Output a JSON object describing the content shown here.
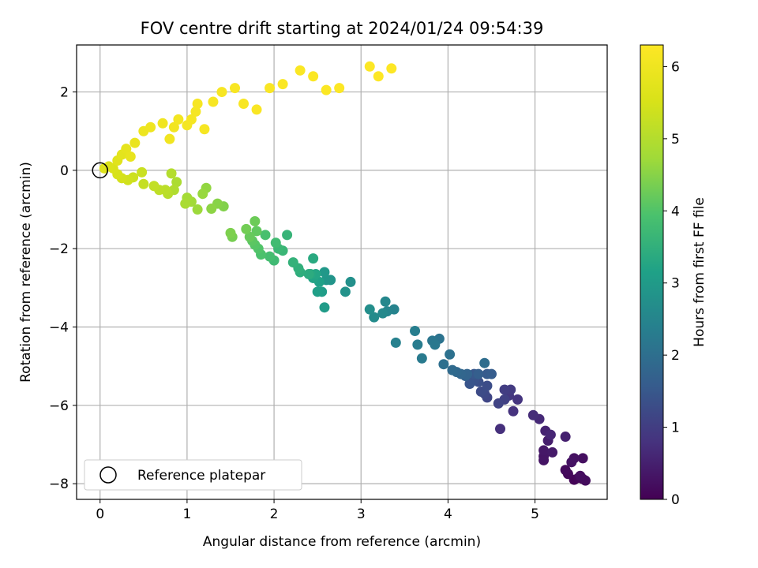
{
  "chart_data": {
    "type": "scatter",
    "title": "FOV centre drift starting at 2024/01/24 09:54:39",
    "xlabel": "Angular distance from reference (arcmin)",
    "ylabel": "Rotation from reference (arcmin)",
    "xlim": [
      -0.27,
      5.83
    ],
    "ylim": [
      -8.4,
      3.2
    ],
    "xticks": [
      0,
      1,
      2,
      3,
      4,
      5
    ],
    "yticks": [
      -8,
      -6,
      -4,
      -2,
      0,
      2
    ],
    "grid": true,
    "colormap": "viridis",
    "colorbar": {
      "label": "Hours from first FF file",
      "range": [
        0,
        6.3
      ],
      "ticks": [
        0,
        1,
        2,
        3,
        4,
        5,
        6
      ]
    },
    "legend": {
      "placement": "lower-left",
      "entries": [
        {
          "label": "Reference platepar",
          "marker": "open-circle",
          "x": 0,
          "y": 0
        }
      ]
    },
    "series": [
      {
        "points": [
          [
            5.45,
            -7.9,
            0.05
          ],
          [
            5.55,
            -7.88,
            0.08
          ],
          [
            5.5,
            -7.85,
            0.1
          ],
          [
            5.38,
            -7.75,
            0.12
          ],
          [
            5.35,
            -7.65,
            0.15
          ],
          [
            5.58,
            -7.92,
            0.17
          ],
          [
            5.52,
            -7.8,
            0.2
          ],
          [
            5.55,
            -7.35,
            0.22
          ],
          [
            5.45,
            -7.35,
            0.25
          ],
          [
            5.42,
            -7.45,
            0.28
          ],
          [
            5.1,
            -7.4,
            0.3
          ],
          [
            5.1,
            -7.3,
            0.32
          ],
          [
            5.1,
            -7.15,
            0.35
          ],
          [
            5.2,
            -7.2,
            0.4
          ],
          [
            5.15,
            -6.9,
            0.45
          ],
          [
            5.35,
            -6.8,
            0.5
          ],
          [
            5.12,
            -6.65,
            0.55
          ],
          [
            5.18,
            -6.75,
            0.6
          ],
          [
            5.05,
            -6.35,
            0.65
          ],
          [
            4.98,
            -6.25,
            0.7
          ],
          [
            4.6,
            -6.6,
            0.75
          ],
          [
            4.75,
            -6.15,
            0.8
          ],
          [
            4.8,
            -5.85,
            0.85
          ],
          [
            4.7,
            -5.75,
            0.9
          ],
          [
            4.72,
            -5.6,
            0.95
          ],
          [
            4.65,
            -5.6,
            1.0
          ],
          [
            4.65,
            -5.85,
            1.05
          ],
          [
            4.58,
            -5.95,
            1.1
          ],
          [
            4.45,
            -5.8,
            1.15
          ],
          [
            4.42,
            -5.7,
            1.2
          ],
          [
            4.38,
            -5.65,
            1.25
          ],
          [
            4.45,
            -5.5,
            1.3
          ],
          [
            4.35,
            -5.4,
            1.35
          ],
          [
            4.3,
            -5.35,
            1.4
          ],
          [
            4.25,
            -5.45,
            1.45
          ],
          [
            4.3,
            -5.2,
            1.5
          ],
          [
            4.45,
            -5.2,
            1.55
          ],
          [
            4.5,
            -5.2,
            1.6
          ],
          [
            4.35,
            -5.2,
            1.65
          ],
          [
            4.2,
            -5.25,
            1.7
          ],
          [
            4.22,
            -5.2,
            1.75
          ],
          [
            4.15,
            -5.2,
            1.8
          ],
          [
            4.1,
            -5.15,
            1.85
          ],
          [
            4.05,
            -5.1,
            1.9
          ],
          [
            4.42,
            -4.92,
            1.95
          ],
          [
            3.95,
            -4.95,
            2.0
          ],
          [
            4.02,
            -4.7,
            2.05
          ],
          [
            3.9,
            -4.3,
            2.1
          ],
          [
            3.82,
            -4.35,
            2.15
          ],
          [
            3.85,
            -4.45,
            2.2
          ],
          [
            3.7,
            -4.8,
            2.25
          ],
          [
            3.65,
            -4.45,
            2.3
          ],
          [
            3.62,
            -4.1,
            2.35
          ],
          [
            3.4,
            -4.4,
            2.4
          ],
          [
            3.38,
            -3.55,
            2.45
          ],
          [
            3.3,
            -3.6,
            2.5
          ],
          [
            3.28,
            -3.35,
            2.55
          ],
          [
            3.25,
            -3.65,
            2.6
          ],
          [
            3.15,
            -3.75,
            2.65
          ],
          [
            3.1,
            -3.55,
            2.7
          ],
          [
            2.88,
            -2.85,
            2.75
          ],
          [
            2.82,
            -3.1,
            2.8
          ],
          [
            2.65,
            -2.8,
            2.85
          ],
          [
            2.6,
            -2.8,
            2.9
          ],
          [
            2.58,
            -2.6,
            2.95
          ],
          [
            2.58,
            -3.5,
            3.0
          ],
          [
            2.55,
            -3.1,
            3.05
          ],
          [
            2.5,
            -3.1,
            3.1
          ],
          [
            2.52,
            -2.85,
            3.15
          ],
          [
            2.45,
            -2.75,
            3.2
          ],
          [
            2.48,
            -2.65,
            3.25
          ],
          [
            2.42,
            -2.65,
            3.3
          ],
          [
            2.45,
            -2.25,
            3.35
          ],
          [
            2.4,
            -2.65,
            3.4
          ],
          [
            2.3,
            -2.6,
            3.45
          ],
          [
            2.28,
            -2.5,
            3.5
          ],
          [
            2.22,
            -2.35,
            3.55
          ],
          [
            2.15,
            -1.65,
            3.6
          ],
          [
            2.1,
            -2.05,
            3.65
          ],
          [
            2.05,
            -2.0,
            3.7
          ],
          [
            2.0,
            -2.3,
            3.75
          ],
          [
            2.02,
            -1.85,
            3.8
          ],
          [
            1.95,
            -2.2,
            3.85
          ],
          [
            1.9,
            -1.65,
            3.9
          ],
          [
            1.85,
            -2.15,
            3.95
          ],
          [
            1.82,
            -2.0,
            4.0
          ],
          [
            1.78,
            -1.9,
            4.05
          ],
          [
            1.75,
            -1.8,
            4.1
          ],
          [
            1.8,
            -1.55,
            4.15
          ],
          [
            1.72,
            -1.7,
            4.2
          ],
          [
            1.78,
            -1.3,
            4.25
          ],
          [
            1.68,
            -1.5,
            4.3
          ],
          [
            1.52,
            -1.7,
            4.35
          ],
          [
            1.5,
            -1.6,
            4.4
          ],
          [
            1.42,
            -0.92,
            4.45
          ],
          [
            1.35,
            -0.85,
            4.5
          ],
          [
            1.28,
            -0.98,
            4.55
          ],
          [
            1.22,
            -0.45,
            4.6
          ],
          [
            1.18,
            -0.6,
            4.65
          ],
          [
            1.12,
            -1.0,
            4.7
          ],
          [
            1.05,
            -0.8,
            4.75
          ],
          [
            1.0,
            -0.7,
            4.8
          ],
          [
            0.98,
            -0.85,
            4.85
          ],
          [
            0.88,
            -0.3,
            4.9
          ],
          [
            0.85,
            -0.5,
            4.95
          ],
          [
            0.82,
            -0.08,
            5.0
          ],
          [
            0.78,
            -0.6,
            5.05
          ],
          [
            0.75,
            -0.5,
            5.1
          ],
          [
            0.68,
            -0.5,
            5.15
          ],
          [
            0.62,
            -0.4,
            5.2
          ],
          [
            0.5,
            -0.35,
            5.25
          ],
          [
            0.48,
            -0.05,
            5.3
          ],
          [
            0.38,
            -0.18,
            5.35
          ],
          [
            0.32,
            -0.25,
            5.4
          ],
          [
            0.25,
            -0.2,
            5.45
          ],
          [
            0.2,
            -0.1,
            5.5
          ],
          [
            0.15,
            0.05,
            5.55
          ],
          [
            0.1,
            0.1,
            5.6
          ],
          [
            0.05,
            0.05,
            5.65
          ],
          [
            0.2,
            0.25,
            5.7
          ],
          [
            0.25,
            0.4,
            5.75
          ],
          [
            0.3,
            0.55,
            5.8
          ],
          [
            0.35,
            0.35,
            5.85
          ],
          [
            0.4,
            0.7,
            5.9
          ],
          [
            0.5,
            1.0,
            5.95
          ],
          [
            0.58,
            1.1,
            6.0
          ],
          [
            0.72,
            1.2,
            6.02
          ],
          [
            0.8,
            0.8,
            6.04
          ],
          [
            0.85,
            1.1,
            6.06
          ],
          [
            0.9,
            1.3,
            6.08
          ],
          [
            1.0,
            1.15,
            6.1
          ],
          [
            1.05,
            1.3,
            6.12
          ],
          [
            1.1,
            1.5,
            6.14
          ],
          [
            1.12,
            1.7,
            6.15
          ],
          [
            1.2,
            1.05,
            6.16
          ],
          [
            1.3,
            1.75,
            6.17
          ],
          [
            1.4,
            2.0,
            6.18
          ],
          [
            1.55,
            2.1,
            6.19
          ],
          [
            1.65,
            1.7,
            6.2
          ],
          [
            1.8,
            1.55,
            6.21
          ],
          [
            1.95,
            2.1,
            6.22
          ],
          [
            2.1,
            2.2,
            6.23
          ],
          [
            2.3,
            2.55,
            6.24
          ],
          [
            2.45,
            2.4,
            6.25
          ],
          [
            2.6,
            2.05,
            6.26
          ],
          [
            2.75,
            2.1,
            6.27
          ],
          [
            3.1,
            2.65,
            6.28
          ],
          [
            3.2,
            2.4,
            6.29
          ],
          [
            3.35,
            2.6,
            6.3
          ]
        ]
      }
    ]
  }
}
